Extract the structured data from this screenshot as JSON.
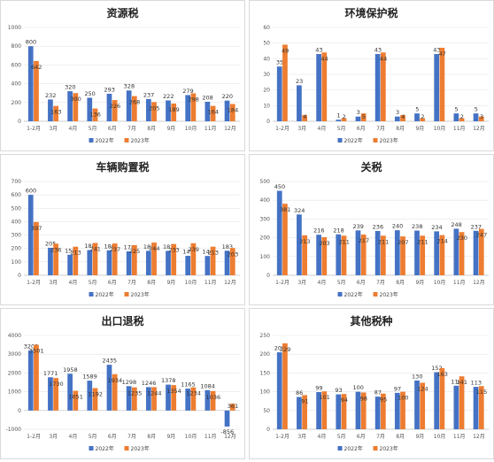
{
  "colors": {
    "series_2022": "#4472c4",
    "series_2023": "#ed7d31"
  },
  "legend": {
    "s2022": "2022年",
    "s2023": "2023年"
  },
  "chart_data": [
    {
      "type": "bar",
      "title": "资源税",
      "categories": [
        "1-2月",
        "3月",
        "4月",
        "5月",
        "6月",
        "7月",
        "8月",
        "9月",
        "10月",
        "11月",
        "12月"
      ],
      "ylim": [
        0,
        1000
      ],
      "yticks": [
        0,
        200,
        400,
        600,
        800,
        1000
      ],
      "series": [
        {
          "name": "2022年",
          "values": [
            800,
            232,
            320,
            250,
            293,
            328,
            237,
            222,
            279,
            208,
            220
          ]
        },
        {
          "name": "2023年",
          "values": [
            642,
            163,
            300,
            136,
            226,
            268,
            205,
            189,
            298,
            164,
            184
          ]
        }
      ],
      "legend_position": "bottom"
    },
    {
      "type": "bar",
      "title": "环境保护税",
      "categories": [
        "1-2月",
        "3月",
        "4月",
        "5月",
        "6月",
        "7月",
        "8月",
        "9月",
        "10月",
        "11月",
        "12月"
      ],
      "ylim": [
        0,
        60
      ],
      "yticks": [
        0,
        10,
        20,
        30,
        40,
        50,
        60
      ],
      "series": [
        {
          "name": "2022年",
          "values": [
            35,
            23,
            43,
            1,
            3,
            43,
            3,
            5,
            43,
            5,
            5
          ]
        },
        {
          "name": "2023年",
          "values": [
            49,
            4,
            44,
            2,
            5,
            44,
            4,
            2,
            47,
            2,
            3
          ]
        }
      ],
      "legend_position": "bottom"
    },
    {
      "type": "bar",
      "title": "车辆购置税",
      "categories": [
        "1-2月",
        "3月",
        "4月",
        "5月",
        "6月",
        "7月",
        "8月",
        "9月",
        "10月",
        "11月",
        "12月"
      ],
      "ylim": [
        0,
        700
      ],
      "yticks": [
        0,
        100,
        200,
        300,
        400,
        500,
        600,
        700
      ],
      "series": [
        {
          "name": "2022年",
          "values": [
            600,
            205,
            153,
            188,
            186,
            178,
            182,
            182,
            145,
            144,
            183
          ]
        },
        {
          "name": "2023年",
          "values": [
            397,
            236,
            213,
            241,
            237,
            225,
            244,
            233,
            239,
            213,
            203
          ]
        }
      ],
      "legend_position": "bottom"
    },
    {
      "type": "bar",
      "title": "关税",
      "categories": [
        "1-2月",
        "3月",
        "4月",
        "5月",
        "6月",
        "7月",
        "8月",
        "9月",
        "10月",
        "11月",
        "12月"
      ],
      "ylim": [
        0,
        500
      ],
      "yticks": [
        0,
        100,
        200,
        300,
        400,
        500
      ],
      "series": [
        {
          "name": "2022年",
          "values": [
            450,
            324,
            216,
            218,
            239,
            236,
            240,
            238,
            234,
            248,
            237
          ]
        },
        {
          "name": "2023年",
          "values": [
            381,
            213,
            203,
            211,
            217,
            211,
            207,
            211,
            214,
            230,
            247
          ]
        }
      ],
      "legend_position": "bottom"
    },
    {
      "type": "bar",
      "title": "出口退税",
      "categories": [
        "1-2月",
        "3月",
        "4月",
        "5月",
        "6月",
        "7月",
        "8月",
        "9月",
        "10月",
        "11月",
        "12月"
      ],
      "ylim": [
        -1000,
        4000
      ],
      "yticks": [
        -1000,
        0,
        1000,
        2000,
        3000,
        4000
      ],
      "series": [
        {
          "name": "2022年",
          "values": [
            3200,
            1771,
            1958,
            1589,
            2435,
            1298,
            1246,
            1378,
            1165,
            1084,
            -856
          ]
        },
        {
          "name": "2023年",
          "values": [
            3501,
            1730,
            1051,
            1192,
            1934,
            1235,
            1244,
            1354,
            1234,
            1036,
            361
          ]
        }
      ],
      "legend_position": "bottom"
    },
    {
      "type": "bar",
      "title": "其他税种",
      "categories": [
        "1-2月",
        "3月",
        "4月",
        "5月",
        "6月",
        "7月",
        "8月",
        "9月",
        "10月",
        "11月",
        "12月"
      ],
      "ylim": [
        0,
        250
      ],
      "yticks": [
        0,
        50,
        100,
        150,
        200,
        250
      ],
      "series": [
        {
          "name": "2022年",
          "values": [
            205,
            86,
            99,
            93,
            100,
            87,
            97,
            130,
            152,
            116,
            113
          ]
        },
        {
          "name": "2023年",
          "values": [
            229,
            91,
            101,
            94,
            98,
            95,
            100,
            124,
            163,
            141,
            115
          ]
        }
      ],
      "legend_position": "bottom"
    }
  ]
}
